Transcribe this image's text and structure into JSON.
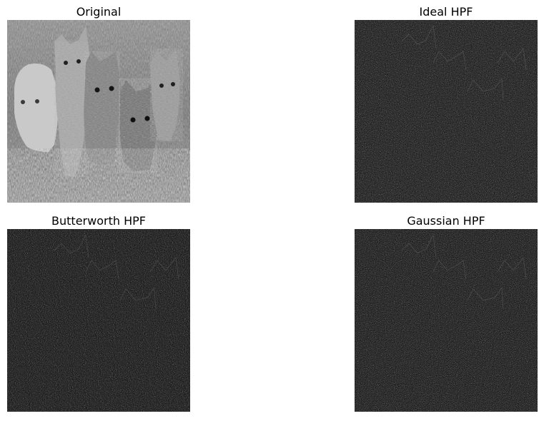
{
  "panels": [
    {
      "id": "original",
      "title": "Original"
    },
    {
      "id": "ideal",
      "title": "Ideal HPF"
    },
    {
      "id": "butterworth",
      "title": "Butterworth HPF"
    },
    {
      "id": "gaussian",
      "title": "Gaussian HPF"
    }
  ],
  "colors": {
    "background": "#ffffff",
    "title_text": "#000000",
    "filtered_base": "#141414"
  }
}
